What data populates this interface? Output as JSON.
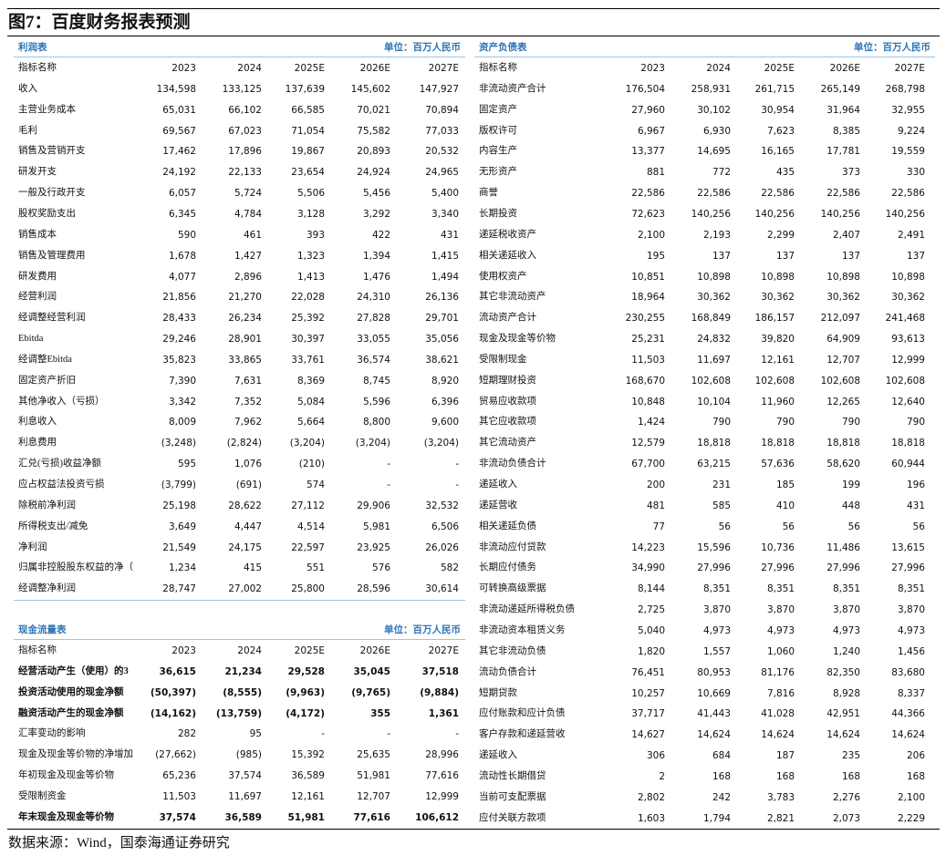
{
  "header": {
    "title": "图7：百度财务报表预测"
  },
  "income": {
    "title": "利润表",
    "unit": "单位：百万人民币",
    "columns": [
      "指标名称",
      "2023",
      "2024",
      "2025E",
      "2026E",
      "2027E"
    ],
    "rows": [
      [
        "收入",
        "134,598",
        "133,125",
        "137,639",
        "145,602",
        "147,927"
      ],
      [
        "主营业务成本",
        "65,031",
        "66,102",
        "66,585",
        "70,021",
        "70,894"
      ],
      [
        "毛利",
        "69,567",
        "67,023",
        "71,054",
        "75,582",
        "77,033"
      ],
      [
        "销售及营销开支",
        "17,462",
        "17,896",
        "19,867",
        "20,893",
        "20,532"
      ],
      [
        "研发开支",
        "24,192",
        "22,133",
        "23,654",
        "24,924",
        "24,965"
      ],
      [
        "一般及行政开支",
        "6,057",
        "5,724",
        "5,506",
        "5,456",
        "5,400"
      ],
      [
        "股权奖励支出",
        "6,345",
        "4,784",
        "3,128",
        "3,292",
        "3,340"
      ],
      [
        "销售成本",
        "590",
        "461",
        "393",
        "422",
        "431"
      ],
      [
        "销售及管理费用",
        "1,678",
        "1,427",
        "1,323",
        "1,394",
        "1,415"
      ],
      [
        "研发费用",
        "4,077",
        "2,896",
        "1,413",
        "1,476",
        "1,494"
      ],
      [
        "经营利润",
        "21,856",
        "21,270",
        "22,028",
        "24,310",
        "26,136"
      ],
      [
        "经调整经营利润",
        "28,433",
        "26,234",
        "25,392",
        "27,828",
        "29,701"
      ],
      [
        "Ebitda",
        "29,246",
        "28,901",
        "30,397",
        "33,055",
        "35,056"
      ],
      [
        "经调整Ebitda",
        "35,823",
        "33,865",
        "33,761",
        "36,574",
        "38,621"
      ],
      [
        "固定资产折旧",
        "7,390",
        "7,631",
        "8,369",
        "8,745",
        "8,920"
      ],
      [
        "其他净收入（亏损）",
        "3,342",
        "7,352",
        "5,084",
        "5,596",
        "6,396"
      ],
      [
        "利息收入",
        "8,009",
        "7,962",
        "5,664",
        "8,800",
        "9,600"
      ],
      [
        "利息费用",
        "(3,248)",
        "(2,824)",
        "(3,204)",
        "(3,204)",
        "(3,204)"
      ],
      [
        "汇兑(亏损)收益净额",
        "595",
        "1,076",
        "(210)",
        "-",
        "-"
      ],
      [
        "应占权益法投资亏损",
        "(3,799)",
        "(691)",
        "574",
        "-",
        "-"
      ],
      [
        "除税前净利润",
        "25,198",
        "28,622",
        "27,112",
        "29,906",
        "32,532"
      ],
      [
        "所得税支出/减免",
        "3,649",
        "4,447",
        "4,514",
        "5,981",
        "6,506"
      ],
      [
        "净利润",
        "21,549",
        "24,175",
        "22,597",
        "23,925",
        "26,026"
      ],
      [
        "归属非控股股东权益的净（",
        "1,234",
        "415",
        "551",
        "576",
        "582"
      ],
      [
        "经调整净利润",
        "28,747",
        "27,002",
        "25,800",
        "28,596",
        "30,614"
      ]
    ]
  },
  "cashflow": {
    "title": "现金流量表",
    "unit": "单位：百万人民币",
    "columns": [
      "指标名称",
      "2023",
      "2024",
      "2025E",
      "2026E",
      "2027E"
    ],
    "rows": [
      [
        "经营活动产生（使用）的3",
        "36,615",
        "21,234",
        "29,528",
        "35,045",
        "37,518"
      ],
      [
        "投资活动使用的现金净额",
        "(50,397)",
        "(8,555)",
        "(9,963)",
        "(9,765)",
        "(9,884)"
      ],
      [
        "融资活动产生的现金净额",
        "(14,162)",
        "(13,759)",
        "(4,172)",
        "355",
        "1,361"
      ],
      [
        "汇率变动的影响",
        "282",
        "95",
        "-",
        "-",
        "-"
      ],
      [
        "现金及现金等价物的净增加",
        "(27,662)",
        "(985)",
        "15,392",
        "25,635",
        "28,996"
      ],
      [
        "年初现金及现金等价物",
        "65,236",
        "37,574",
        "36,589",
        "51,981",
        "77,616"
      ],
      [
        "受限制资金",
        "11,503",
        "11,697",
        "12,161",
        "12,707",
        "12,999"
      ],
      [
        "年末现金及现金等价物",
        "37,574",
        "36,589",
        "51,981",
        "77,616",
        "106,612"
      ]
    ]
  },
  "balance": {
    "title": "资产负债表",
    "unit": "单位：百万人民币",
    "columns": [
      "指标名称",
      "2023",
      "2024",
      "2025E",
      "2026E",
      "2027E"
    ],
    "rows": [
      [
        "非流动资产合计",
        "176,504",
        "258,931",
        "261,715",
        "265,149",
        "268,798"
      ],
      [
        "固定资产",
        "27,960",
        "30,102",
        "30,954",
        "31,964",
        "32,955"
      ],
      [
        "版权许可",
        "6,967",
        "6,930",
        "7,623",
        "8,385",
        "9,224"
      ],
      [
        "内容生产",
        "13,377",
        "14,695",
        "16,165",
        "17,781",
        "19,559"
      ],
      [
        "无形资产",
        "881",
        "772",
        "435",
        "373",
        "330"
      ],
      [
        "商誉",
        "22,586",
        "22,586",
        "22,586",
        "22,586",
        "22,586"
      ],
      [
        "长期投资",
        "72,623",
        "140,256",
        "140,256",
        "140,256",
        "140,256"
      ],
      [
        "递延税收资产",
        "2,100",
        "2,193",
        "2,299",
        "2,407",
        "2,491"
      ],
      [
        "相关递延收入",
        "195",
        "137",
        "137",
        "137",
        "137"
      ],
      [
        "使用权资产",
        "10,851",
        "10,898",
        "10,898",
        "10,898",
        "10,898"
      ],
      [
        "其它非流动资产",
        "18,964",
        "30,362",
        "30,362",
        "30,362",
        "30,362"
      ],
      [
        "流动资产合计",
        "230,255",
        "168,849",
        "186,157",
        "212,097",
        "241,468"
      ],
      [
        "现金及现金等价物",
        "25,231",
        "24,832",
        "39,820",
        "64,909",
        "93,613"
      ],
      [
        "受限制现金",
        "11,503",
        "11,697",
        "12,161",
        "12,707",
        "12,999"
      ],
      [
        "短期理财投资",
        "168,670",
        "102,608",
        "102,608",
        "102,608",
        "102,608"
      ],
      [
        "贸易应收款项",
        "10,848",
        "10,104",
        "11,960",
        "12,265",
        "12,640"
      ],
      [
        "其它应收款项",
        "1,424",
        "790",
        "790",
        "790",
        "790"
      ],
      [
        "其它流动资产",
        "12,579",
        "18,818",
        "18,818",
        "18,818",
        "18,818"
      ],
      [
        "非流动负债合计",
        "67,700",
        "63,215",
        "57,636",
        "58,620",
        "60,944"
      ],
      [
        "递延收入",
        "200",
        "231",
        "185",
        "199",
        "196"
      ],
      [
        "递延营收",
        "481",
        "585",
        "410",
        "448",
        "431"
      ],
      [
        "相关递延负债",
        "77",
        "56",
        "56",
        "56",
        "56"
      ],
      [
        "非流动应付贷款",
        "14,223",
        "15,596",
        "10,736",
        "11,486",
        "13,615"
      ],
      [
        "长期应付债务",
        "34,990",
        "27,996",
        "27,996",
        "27,996",
        "27,996"
      ],
      [
        "可转换高级票据",
        "8,144",
        "8,351",
        "8,351",
        "8,351",
        "8,351"
      ],
      [
        "非流动递延所得税负债",
        "2,725",
        "3,870",
        "3,870",
        "3,870",
        "3,870"
      ],
      [
        "非流动资本租赁义务",
        "5,040",
        "4,973",
        "4,973",
        "4,973",
        "4,973"
      ],
      [
        "其它非流动负债",
        "1,820",
        "1,557",
        "1,060",
        "1,240",
        "1,456"
      ],
      [
        "流动负债合计",
        "76,451",
        "80,953",
        "81,176",
        "82,350",
        "83,680"
      ],
      [
        "短期贷款",
        "10,257",
        "10,669",
        "7,816",
        "8,928",
        "8,337"
      ],
      [
        "应付账款和应计负债",
        "37,717",
        "41,443",
        "41,028",
        "42,951",
        "44,366"
      ],
      [
        "客户存款和递延营收",
        "14,627",
        "14,624",
        "14,624",
        "14,624",
        "14,624"
      ],
      [
        "递延收入",
        "306",
        "684",
        "187",
        "235",
        "206"
      ],
      [
        "流动性长期借贷",
        "2",
        "168",
        "168",
        "168",
        "168"
      ],
      [
        "当前可支配票据",
        "2,802",
        "242",
        "3,783",
        "2,276",
        "2,100"
      ],
      [
        "应付关联方款项",
        "1,603",
        "1,794",
        "2,821",
        "2,073",
        "2,229"
      ]
    ]
  },
  "source": "数据来源：Wind，国泰海通证券研究"
}
